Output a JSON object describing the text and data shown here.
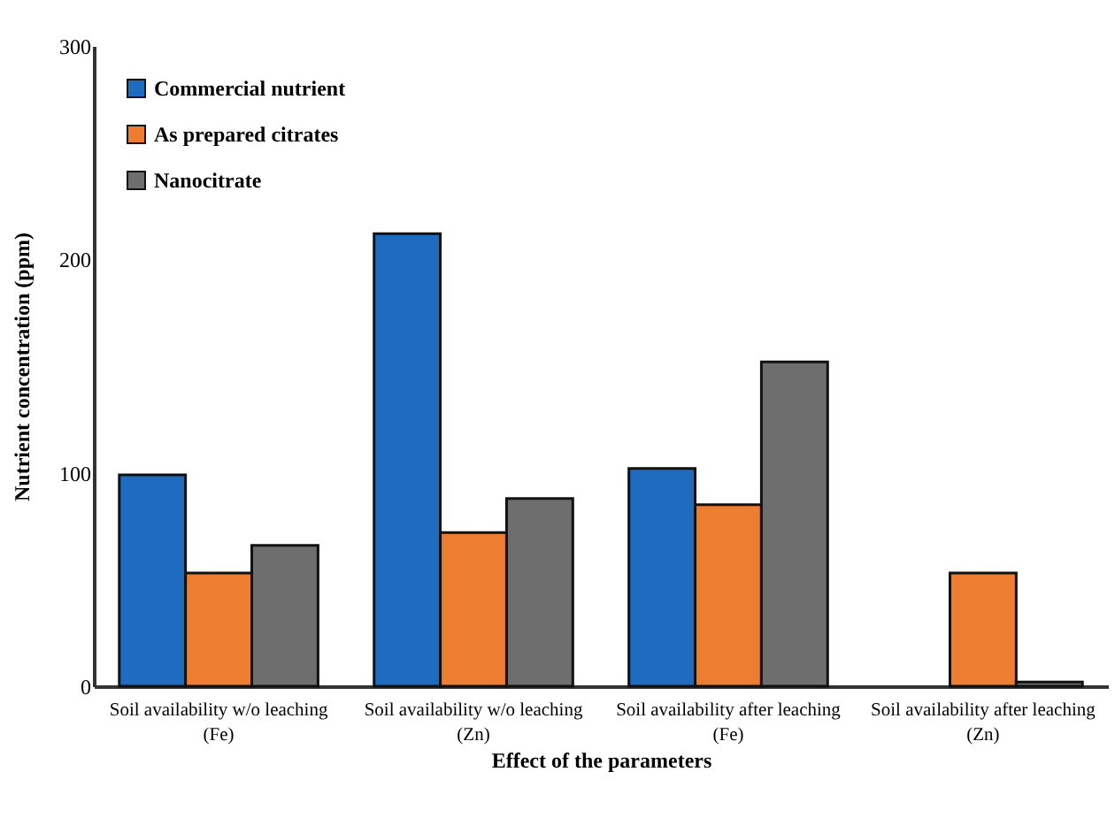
{
  "chart_data": {
    "type": "bar",
    "xlabel": "Effect of the parameters",
    "ylabel": "Nutrient concentration (ppm)",
    "categories": [
      "Soil availability w/o leaching\n(Fe)",
      "Soil availability w/o leaching\n(Zn)",
      "Soil availability after leaching\n(Fe)",
      "Soil availability after leaching\n(Zn)"
    ],
    "series": [
      {
        "name": "Commercial nutrient",
        "color": "#1f6bbf",
        "values": [
          99,
          212,
          102,
          null
        ]
      },
      {
        "name": "As prepared citrates",
        "color": "#ed7d31",
        "values": [
          53,
          72,
          85,
          53
        ]
      },
      {
        "name": "Nanocitrate",
        "color": "#6e6e6e",
        "values": [
          66,
          88,
          152,
          2
        ]
      }
    ],
    "ylim": [
      0,
      300
    ],
    "yticks": [
      0,
      100,
      200,
      300
    ],
    "grid": false,
    "legend": "top left"
  }
}
